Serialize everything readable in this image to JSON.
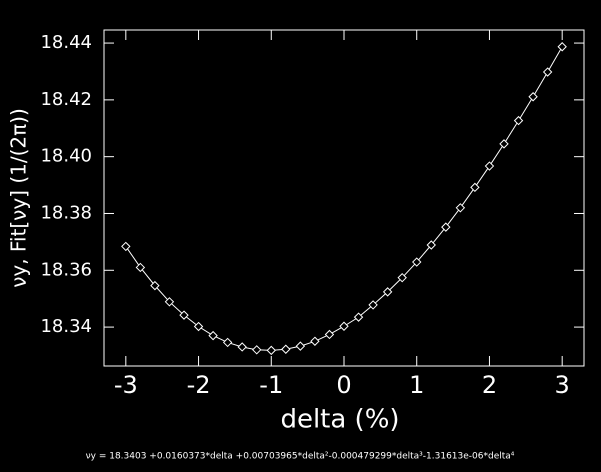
{
  "chart_data": {
    "type": "line",
    "markers": "diamond",
    "color": "#ffffff",
    "xlabel": "delta (%)",
    "ylabel": "νy, Fit[νy] (1/(2π))",
    "annotation": "νy = 18.3403 +0.0160373*delta +0.00703965*delta²-0.000479299*delta³-1.31613e-06*delta⁴",
    "x": [
      -3.0,
      -2.8,
      -2.6,
      -2.4,
      -2.2,
      -2.0,
      -1.8,
      -1.6,
      -1.4,
      -1.2,
      -1.0,
      -0.8,
      -0.6,
      -0.4,
      -0.2,
      0.0,
      0.2,
      0.4,
      0.6,
      0.8,
      1.0,
      1.2,
      1.4,
      1.6,
      1.8,
      2.0,
      2.2,
      2.4,
      2.6,
      2.8,
      3.0
    ],
    "values": [
      18.3684,
      18.361,
      18.3546,
      18.3489,
      18.3442,
      18.3402,
      18.337,
      18.3346,
      18.333,
      18.332,
      18.3318,
      18.3322,
      18.3333,
      18.335,
      18.3374,
      18.3403,
      18.3435,
      18.3478,
      18.3524,
      18.3574,
      18.3629,
      18.3689,
      18.3752,
      18.382,
      18.3892,
      18.3967,
      18.4045,
      18.4127,
      18.4211,
      18.4298,
      18.4387
    ],
    "xlim": [
      -3.3,
      3.3
    ],
    "xticks": [
      -3,
      -2,
      -1,
      0,
      1,
      2,
      3
    ],
    "ylim": [
      18.3263,
      18.4446
    ],
    "yticks": [
      18.34,
      18.36,
      18.38,
      {
        "value": 18.4,
        "label": "18.40"
      },
      18.42,
      18.44
    ]
  }
}
